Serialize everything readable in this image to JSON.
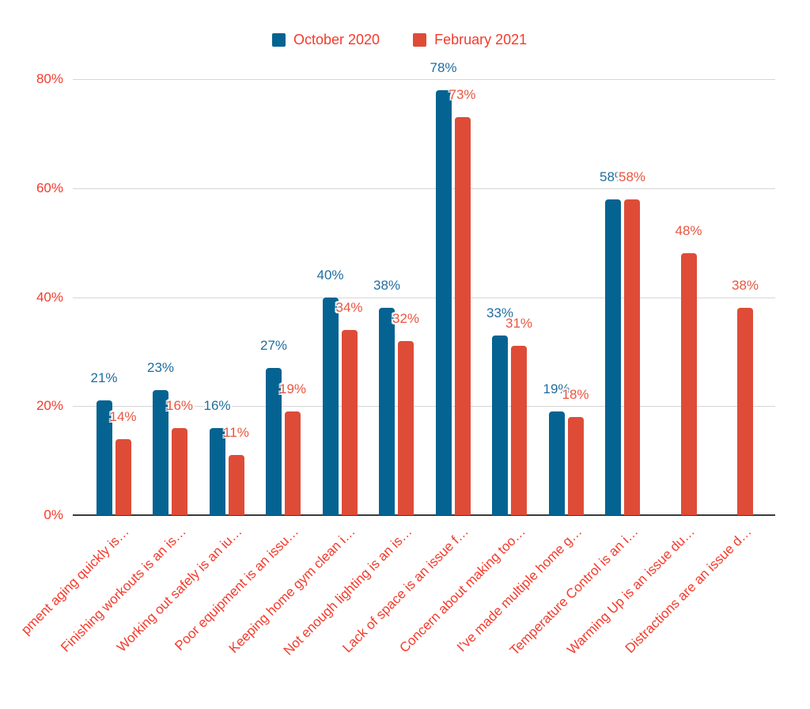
{
  "legend": {
    "items": [
      {
        "label": "October 2020",
        "color": "#056392"
      },
      {
        "label": "February 2021",
        "color": "#de4c38"
      }
    ],
    "text_color": "#f33b2c"
  },
  "chart_data": {
    "type": "bar",
    "title": "",
    "categories": [
      "pment aging quickly is…",
      "Finishing workouts is an is…",
      "Working out safely is an iu…",
      "Poor equipment is an issu…",
      "Keeping home gym clean i…",
      "Not enough lighting is an is…",
      "Lack of space is an issue f…",
      "Concern about making too…",
      "I've made multiple home g…",
      "Temperature Control is an i…",
      "Warming Up is an issue du…",
      "Distractions are an issue d…"
    ],
    "series": [
      {
        "name": "October 2020",
        "color": "#056392",
        "label_color": "#1f6d9e",
        "values": [
          21,
          23,
          16,
          27,
          40,
          38,
          78,
          33,
          19,
          58,
          null,
          null
        ]
      },
      {
        "name": "February 2021",
        "color": "#de4c38",
        "label_color": "#e95540",
        "values": [
          14,
          16,
          11,
          19,
          34,
          32,
          73,
          31,
          18,
          58,
          48,
          38
        ]
      }
    ],
    "value_suffix": "%",
    "y_axis": {
      "tick_labels": [
        "0%",
        "20%",
        "40%",
        "60%",
        "80%"
      ],
      "tick_values": [
        0,
        20,
        40,
        60,
        80
      ],
      "range": [
        0,
        80
      ],
      "label_color": "#f33b2c"
    },
    "x_axis": {
      "label_color": "#f33b2c",
      "label_rotation_deg": 45
    },
    "grid": true,
    "gridline_color": "#d6d6d6",
    "axis_line_color": "#3a3a3a",
    "legend_position": "top",
    "data_labels_shown": true
  }
}
